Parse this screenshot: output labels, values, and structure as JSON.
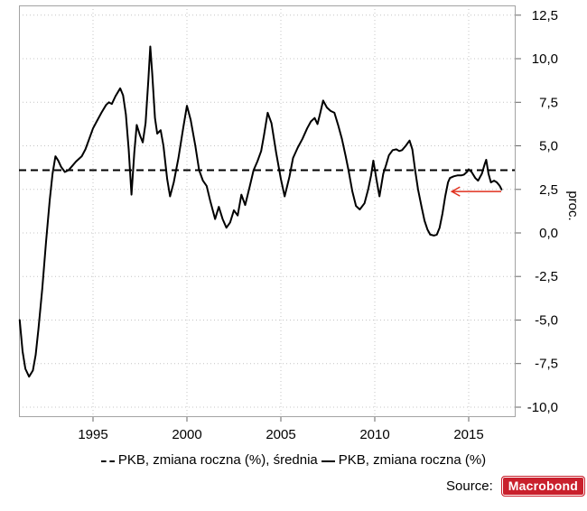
{
  "chart_data": {
    "type": "line",
    "title": "",
    "xlabel": "",
    "ylabel": "proc.",
    "grid": true,
    "legend_position": "bottom",
    "xlim": [
      1991.06,
      2017.45
    ],
    "ylim": [
      -10.52,
      13.06
    ],
    "x_ticks": [
      {
        "value": 1995,
        "label": "1995"
      },
      {
        "value": 2000,
        "label": "2000"
      },
      {
        "value": 2005,
        "label": "2005"
      },
      {
        "value": 2010,
        "label": "2010"
      },
      {
        "value": 2015,
        "label": "2015"
      }
    ],
    "y_ticks": [
      {
        "value": 12.5,
        "label": "12,5"
      },
      {
        "value": 10.0,
        "label": "10,0"
      },
      {
        "value": 7.5,
        "label": "7,5"
      },
      {
        "value": 5.0,
        "label": "5,0"
      },
      {
        "value": 2.5,
        "label": "2,5"
      },
      {
        "value": 0.0,
        "label": "0,0"
      },
      {
        "value": -2.5,
        "label": "-2,5"
      },
      {
        "value": -5.0,
        "label": "-5,0"
      },
      {
        "value": -7.5,
        "label": "-7,5"
      },
      {
        "value": -10.0,
        "label": "-10,0"
      }
    ],
    "series": [
      {
        "name": "PKB, zmiana roczna (%), średnia",
        "style": "dashed",
        "color": "#000000",
        "constant": 3.6
      },
      {
        "name": "PKB, zmiana roczna (%)",
        "style": "solid",
        "color": "#000000",
        "points": [
          [
            1991.1,
            -5.0
          ],
          [
            1991.25,
            -6.8
          ],
          [
            1991.4,
            -7.8
          ],
          [
            1991.6,
            -8.25
          ],
          [
            1991.8,
            -7.9
          ],
          [
            1991.95,
            -7.0
          ],
          [
            1992.1,
            -5.5
          ],
          [
            1992.3,
            -3.2
          ],
          [
            1992.5,
            -0.5
          ],
          [
            1992.7,
            1.9
          ],
          [
            1992.85,
            3.4
          ],
          [
            1993.0,
            4.4
          ],
          [
            1993.15,
            4.15
          ],
          [
            1993.3,
            3.8
          ],
          [
            1993.5,
            3.5
          ],
          [
            1993.7,
            3.6
          ],
          [
            1993.9,
            3.85
          ],
          [
            1994.1,
            4.1
          ],
          [
            1994.4,
            4.4
          ],
          [
            1994.6,
            4.8
          ],
          [
            1994.8,
            5.4
          ],
          [
            1995.0,
            6.0
          ],
          [
            1995.2,
            6.4
          ],
          [
            1995.45,
            6.9
          ],
          [
            1995.7,
            7.35
          ],
          [
            1995.85,
            7.5
          ],
          [
            1996.0,
            7.4
          ],
          [
            1996.2,
            7.85
          ],
          [
            1996.45,
            8.3
          ],
          [
            1996.6,
            7.9
          ],
          [
            1996.75,
            6.8
          ],
          [
            1996.9,
            4.8
          ],
          [
            1997.05,
            2.2
          ],
          [
            1997.2,
            4.6
          ],
          [
            1997.33,
            6.2
          ],
          [
            1997.5,
            5.6
          ],
          [
            1997.65,
            5.2
          ],
          [
            1997.8,
            6.3
          ],
          [
            1997.95,
            8.8
          ],
          [
            1998.05,
            10.7
          ],
          [
            1998.15,
            9.2
          ],
          [
            1998.3,
            6.6
          ],
          [
            1998.42,
            5.7
          ],
          [
            1998.6,
            5.9
          ],
          [
            1998.75,
            5.0
          ],
          [
            1998.95,
            3.1
          ],
          [
            1999.1,
            2.1
          ],
          [
            1999.3,
            2.9
          ],
          [
            1999.55,
            4.3
          ],
          [
            1999.8,
            6.0
          ],
          [
            2000.0,
            7.3
          ],
          [
            2000.2,
            6.5
          ],
          [
            2000.45,
            5.0
          ],
          [
            2000.65,
            3.6
          ],
          [
            2000.85,
            3.0
          ],
          [
            2001.05,
            2.7
          ],
          [
            2001.25,
            1.8
          ],
          [
            2001.5,
            0.8
          ],
          [
            2001.7,
            1.5
          ],
          [
            2001.9,
            0.8
          ],
          [
            2002.1,
            0.3
          ],
          [
            2002.3,
            0.6
          ],
          [
            2002.5,
            1.3
          ],
          [
            2002.7,
            1.0
          ],
          [
            2002.9,
            2.2
          ],
          [
            2003.1,
            1.6
          ],
          [
            2003.35,
            2.7
          ],
          [
            2003.55,
            3.6
          ],
          [
            2003.75,
            4.1
          ],
          [
            2003.95,
            4.7
          ],
          [
            2004.1,
            5.6
          ],
          [
            2004.3,
            6.9
          ],
          [
            2004.5,
            6.3
          ],
          [
            2004.75,
            4.6
          ],
          [
            2005.0,
            3.1
          ],
          [
            2005.2,
            2.1
          ],
          [
            2005.45,
            3.2
          ],
          [
            2005.65,
            4.3
          ],
          [
            2005.9,
            4.9
          ],
          [
            2006.15,
            5.4
          ],
          [
            2006.4,
            6.0
          ],
          [
            2006.6,
            6.4
          ],
          [
            2006.8,
            6.6
          ],
          [
            2006.95,
            6.25
          ],
          [
            2007.1,
            6.9
          ],
          [
            2007.25,
            7.6
          ],
          [
            2007.45,
            7.2
          ],
          [
            2007.65,
            7.0
          ],
          [
            2007.85,
            6.9
          ],
          [
            2008.05,
            6.2
          ],
          [
            2008.25,
            5.4
          ],
          [
            2008.45,
            4.4
          ],
          [
            2008.6,
            3.6
          ],
          [
            2008.8,
            2.4
          ],
          [
            2009.0,
            1.55
          ],
          [
            2009.2,
            1.35
          ],
          [
            2009.45,
            1.7
          ],
          [
            2009.65,
            2.5
          ],
          [
            2009.8,
            3.3
          ],
          [
            2009.92,
            4.15
          ],
          [
            2010.1,
            3.0
          ],
          [
            2010.25,
            2.1
          ],
          [
            2010.45,
            3.4
          ],
          [
            2010.6,
            3.9
          ],
          [
            2010.75,
            4.45
          ],
          [
            2010.95,
            4.75
          ],
          [
            2011.15,
            4.8
          ],
          [
            2011.3,
            4.7
          ],
          [
            2011.45,
            4.75
          ],
          [
            2011.65,
            5.0
          ],
          [
            2011.85,
            5.3
          ],
          [
            2012.0,
            4.8
          ],
          [
            2012.15,
            3.6
          ],
          [
            2012.3,
            2.5
          ],
          [
            2012.5,
            1.45
          ],
          [
            2012.65,
            0.7
          ],
          [
            2012.8,
            0.2
          ],
          [
            2012.95,
            -0.1
          ],
          [
            2013.15,
            -0.15
          ],
          [
            2013.3,
            -0.1
          ],
          [
            2013.45,
            0.3
          ],
          [
            2013.6,
            1.1
          ],
          [
            2013.75,
            2.1
          ],
          [
            2013.9,
            2.9
          ],
          [
            2014.0,
            3.15
          ],
          [
            2014.2,
            3.25
          ],
          [
            2014.4,
            3.3
          ],
          [
            2014.6,
            3.3
          ],
          [
            2014.75,
            3.35
          ],
          [
            2014.9,
            3.5
          ],
          [
            2015.0,
            3.65
          ],
          [
            2015.15,
            3.5
          ],
          [
            2015.35,
            3.15
          ],
          [
            2015.5,
            3.0
          ],
          [
            2015.7,
            3.4
          ],
          [
            2015.85,
            3.95
          ],
          [
            2015.93,
            4.2
          ],
          [
            2016.05,
            3.4
          ],
          [
            2016.18,
            2.9
          ],
          [
            2016.35,
            3.0
          ],
          [
            2016.5,
            2.9
          ],
          [
            2016.65,
            2.7
          ],
          [
            2016.75,
            2.5
          ]
        ]
      }
    ],
    "annotation_arrow": {
      "from": [
        2016.73,
        2.38
      ],
      "to": [
        2014.1,
        2.38
      ],
      "color": "#e0301e"
    }
  },
  "legend": {
    "items": [
      {
        "marker": "dashed",
        "label": "PKB, zmiana roczna (%), średnia"
      },
      {
        "marker": "solid",
        "label": "PKB, zmiana roczna (%)"
      }
    ]
  },
  "source": {
    "label": "Source:",
    "brand": "Macrobond",
    "brand_color": "#c9202c"
  },
  "colors": {
    "line": "#000000",
    "grid": "#c4c4c4",
    "frame": "#a3a3a3",
    "tick": "#666666",
    "text": "#000000",
    "arrow": "#e0301e"
  }
}
